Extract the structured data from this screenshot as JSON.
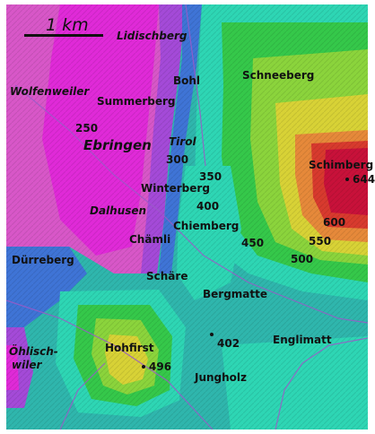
{
  "scale": {
    "label": "1 km"
  },
  "places": {
    "lidischberg": "Lidischberg",
    "wolfenweiler": "Wolfenweiler",
    "summerberg": "Summerberg",
    "bohl": "Bohl",
    "schneeberg": "Schneeberg",
    "ebringen": "Ebringen",
    "tirol": "Tirol",
    "schimberg": "Schimberg",
    "winterberg": "Winterberg",
    "dalhusen": "Dalhusen",
    "chiemberg": "Chiemberg",
    "chaemli": "Chämli",
    "duerreberg": "Dürreberg",
    "schaere": "Schäre",
    "bergmatte": "Bergmatte",
    "oehlischwiler_1": "Öhlisch-",
    "oehlischwiler_2": "wiler",
    "hohfirst": "Hohfirst",
    "englimatt": "Englimatt",
    "jungholz": "Jungholz"
  },
  "elevations": {
    "e250": "250",
    "e300": "300",
    "e350": "350",
    "e400": "400",
    "e450": "450",
    "e500": "500",
    "e550": "550",
    "e600": "600",
    "e644": "644",
    "e402": "402",
    "e496": "496"
  },
  "colors": {
    "lowland": "#d857c8",
    "magenta": "#e02ad8",
    "purple": "#a44ad8",
    "blue": "#3f74d6",
    "cyan": "#2fb6ad",
    "turquoise": "#2ed6b4",
    "green": "#35c84a",
    "lightgreen": "#8bd43c",
    "yellow": "#d8d236",
    "orange": "#e6893a",
    "red": "#d83a2e",
    "crimson": "#c8113a",
    "path": "#9a5ac8"
  }
}
